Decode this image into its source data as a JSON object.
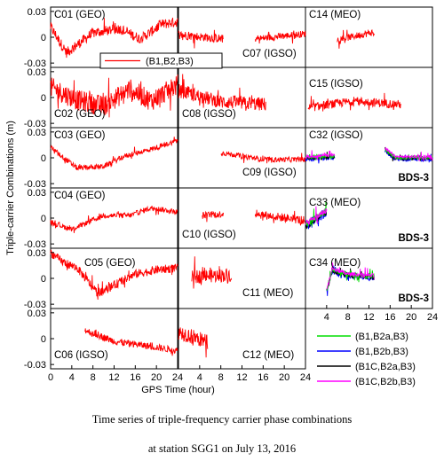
{
  "figure": {
    "ylabel": "Triple-carrier Combinations (m)",
    "xlabel": "GPS Time (hour)",
    "caption_line1": "Time series of triple-frequency carrier phase combinations",
    "caption_line2": "at station SGG1 on July 13, 2016"
  },
  "chart_data": {
    "type": "line",
    "grid": false,
    "x_ticks": [
      0,
      4,
      8,
      12,
      16,
      20,
      24
    ],
    "x_tick_labels": [
      "0",
      "4",
      "8",
      "12",
      "16",
      "20",
      "24"
    ],
    "y_ticks": [
      -0.03,
      0,
      0.03
    ],
    "y_tick_labels": [
      "-0.03",
      "0",
      "0.03"
    ],
    "xlim": [
      0,
      24
    ],
    "ylim": [
      -0.035,
      0.035
    ],
    "legend": {
      "placement": "bottom-right",
      "entries": [
        {
          "name": "(B1,B2,B3)",
          "color": "#ff0000"
        },
        {
          "name": "(B1,B2a,B3)",
          "color": "#00dd00"
        },
        {
          "name": "(B1,B2b,B3)",
          "color": "#0000ff"
        },
        {
          "name": "(B1C,B2a,B3)",
          "color": "#000000"
        },
        {
          "name": "(B1C,B2b,B3)",
          "color": "#ff00ff"
        }
      ]
    },
    "panels": [
      {
        "label": "C01 (GEO)",
        "row": 0,
        "col": 0,
        "segments": [
          {
            "x": [
              0,
              24
            ],
            "amp": 0.006,
            "shape": [
              [
                0,
                0.012
              ],
              [
                3,
                -0.018
              ],
              [
                8,
                0.005
              ],
              [
                13,
                0.01
              ],
              [
                17,
                -0.002
              ],
              [
                21,
                0.015
              ],
              [
                24,
                0.018
              ]
            ]
          }
        ]
      },
      {
        "label": "C07 (IGSO)",
        "row": 0,
        "col": 1,
        "segments": [
          {
            "x": [
              0,
              8.5
            ],
            "amp": 0.005,
            "shape": [
              [
                0,
                0.003
              ],
              [
                8.5,
                -0.002
              ]
            ]
          },
          {
            "x": [
              14.5,
              24
            ],
            "amp": 0.004,
            "shape": [
              [
                14.5,
                -0.002
              ],
              [
                24,
                0.004
              ]
            ]
          }
        ]
      },
      {
        "label": "C14 (MEO)",
        "row": 0,
        "col": 2,
        "segments": [
          {
            "x": [
              6,
              13
            ],
            "amp": 0.004,
            "shape": [
              [
                6,
                -0.003
              ],
              [
                13,
                0.006
              ]
            ]
          }
        ]
      },
      {
        "label": "C02 (GEO)",
        "row": 1,
        "col": 0,
        "segments": [
          {
            "x": [
              0,
              24
            ],
            "amp": 0.012,
            "shape": [
              [
                0,
                0.012
              ],
              [
                5,
                -0.003
              ],
              [
                10,
                -0.01
              ],
              [
                15,
                0.01
              ],
              [
                19,
                -0.004
              ],
              [
                24,
                0.015
              ]
            ]
          }
        ]
      },
      {
        "label": "C08 (IGSO)",
        "row": 1,
        "col": 1,
        "segments": [
          {
            "x": [
              0,
              16.5
            ],
            "amp": 0.008,
            "shape": [
              [
                0,
                0.008
              ],
              [
                8,
                -0.005
              ],
              [
                16.5,
                -0.008
              ]
            ]
          }
        ]
      },
      {
        "label": "C15 (IGSO)",
        "row": 1,
        "col": 2,
        "segments": [
          {
            "x": [
              0.5,
              18
            ],
            "amp": 0.005,
            "shape": [
              [
                0.5,
                -0.012
              ],
              [
                9,
                -0.004
              ],
              [
                18,
                -0.008
              ]
            ]
          }
        ]
      },
      {
        "label": "C03 (GEO)",
        "row": 2,
        "col": 0,
        "segments": [
          {
            "x": [
              0,
              24
            ],
            "amp": 0.003,
            "shape": [
              [
                0,
                0.012
              ],
              [
                5,
                -0.012
              ],
              [
                10,
                -0.01
              ],
              [
                14,
                0.002
              ],
              [
                19,
                0.01
              ],
              [
                24,
                0.02
              ]
            ]
          }
        ]
      },
      {
        "label": "C09 (IGSO)",
        "row": 2,
        "col": 1,
        "segments": [
          {
            "x": [
              8,
              24
            ],
            "amp": 0.003,
            "shape": [
              [
                8,
                0.006
              ],
              [
                16,
                -0.002
              ],
              [
                24,
                -0.002
              ]
            ]
          }
        ]
      },
      {
        "label": "C32 (IGSO)",
        "row": 2,
        "col": 2,
        "note": "BDS-3",
        "segments": [
          {
            "x": [
              0,
              5.5
            ],
            "amp": 0.003,
            "shape": [
              [
                0,
                0
              ],
              [
                5.5,
                0.002
              ]
            ]
          },
          {
            "x": [
              15,
              24
            ],
            "amp": 0.003,
            "shape": [
              [
                15,
                0.01
              ],
              [
                17,
                0
              ],
              [
                24,
                0
              ]
            ]
          }
        ]
      },
      {
        "label": "C04 (GEO)",
        "row": 3,
        "col": 0,
        "segments": [
          {
            "x": [
              0,
              24
            ],
            "amp": 0.003,
            "shape": [
              [
                0,
                -0.005
              ],
              [
                4,
                -0.013
              ],
              [
                10,
                0.003
              ],
              [
                15,
                0.003
              ],
              [
                19,
                0.012
              ],
              [
                24,
                0.007
              ]
            ]
          }
        ]
      },
      {
        "label": "C10 (IGSO)",
        "row": 3,
        "col": 1,
        "segments": [
          {
            "x": [
              4.5,
              8.5
            ],
            "amp": 0.004,
            "shape": [
              [
                4.5,
                0.003
              ],
              [
                8.5,
                0.005
              ]
            ]
          },
          {
            "x": [
              14.5,
              24
            ],
            "amp": 0.005,
            "shape": [
              [
                14.5,
                0.005
              ],
              [
                24,
                -0.003
              ]
            ]
          }
        ]
      },
      {
        "label": "C33 (MEO)",
        "row": 3,
        "col": 2,
        "note": "BDS-3",
        "segments": [
          {
            "x": [
              0,
              4
            ],
            "amp": 0.006,
            "shape": [
              [
                0,
                -0.008
              ],
              [
                4,
                0.008
              ]
            ]
          }
        ]
      },
      {
        "label": "C05 (GEO)",
        "row": 4,
        "col": 0,
        "segments": [
          {
            "x": [
              0,
              24
            ],
            "amp": 0.005,
            "shape": [
              [
                0,
                0.03
              ],
              [
                2,
                0.02
              ],
              [
                5,
                0.012
              ],
              [
                9,
                -0.018
              ],
              [
                12,
                -0.008
              ],
              [
                16,
                0.005
              ],
              [
                20,
                0.01
              ],
              [
                24,
                0.012
              ]
            ]
          }
        ]
      },
      {
        "label": "C11 (MEO)",
        "row": 4,
        "col": 1,
        "segments": [
          {
            "x": [
              2.5,
              10
            ],
            "amp": 0.008,
            "shape": [
              [
                2.5,
                0.002
              ],
              [
                10,
                0.004
              ]
            ]
          }
        ]
      },
      {
        "label": "C34 (MEO)",
        "row": 4,
        "col": 2,
        "note": "BDS-3",
        "segments": [
          {
            "x": [
              4,
              13
            ],
            "amp": 0.004,
            "shape": [
              [
                4,
                -0.015
              ],
              [
                5,
                0.01
              ],
              [
                8,
                0.004
              ],
              [
                13,
                0.002
              ]
            ]
          }
        ]
      },
      {
        "label": "C06 (IGSO)",
        "row": 5,
        "col": 0,
        "segments": [
          {
            "x": [
              6.5,
              24
            ],
            "amp": 0.004,
            "shape": [
              [
                6.5,
                0.01
              ],
              [
                12,
                -0.003
              ],
              [
                20,
                -0.01
              ],
              [
                24,
                -0.014
              ]
            ]
          }
        ]
      },
      {
        "label": "C12 (MEO)",
        "row": 5,
        "col": 1,
        "segments": [
          {
            "x": [
              0,
              5.5
            ],
            "amp": 0.009,
            "shape": [
              [
                0,
                0.008
              ],
              [
                5.5,
                -0.004
              ]
            ]
          }
        ]
      }
    ]
  }
}
